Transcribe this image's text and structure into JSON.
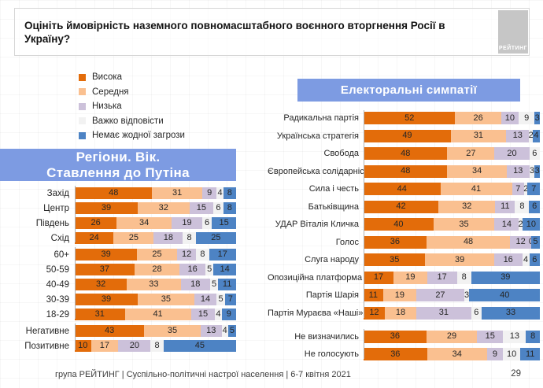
{
  "title": "Оцініть ймовірність наземного повномасштабного воєнного вторгнення Росії в Україну?",
  "logo_text": "РЕЙТИНГ",
  "accent_color": "#7d9be2",
  "panels": {
    "left": {
      "header_line1": "Регіони. Вік.",
      "header_line2": "Ставлення до Путіна"
    },
    "right": {
      "header": "Електоральні симпатії"
    }
  },
  "legend": {
    "items": [
      {
        "label": "Висока",
        "color": "#e36c0a"
      },
      {
        "label": "Середня",
        "color": "#fac090"
      },
      {
        "label": "Низька",
        "color": "#ccc1da"
      },
      {
        "label": "Важко відповісти",
        "color": "#f2f2f2"
      },
      {
        "label": "Немає жодної загрози",
        "color": "#4d83c4"
      }
    ]
  },
  "footer": {
    "source": "група РЕЙТИНГ | Суспільно-політичні настрої населення | 6-7 квітня 2021",
    "page": "29"
  },
  "chart_data": [
    {
      "type": "bar",
      "stacked": true,
      "orientation": "horizontal",
      "title": "Регіони. Вік. Ставлення до Путіна",
      "unit": "%",
      "xlim": [
        0,
        100
      ],
      "series_names": [
        "Висока",
        "Середня",
        "Низька",
        "Важко відповісти",
        "Немає жодної загрози"
      ],
      "groups": [
        {
          "name": "regions",
          "rows": [
            {
              "label": "Захід",
              "values": [
                48,
                31,
                9,
                4,
                8
              ]
            },
            {
              "label": "Центр",
              "values": [
                39,
                32,
                15,
                6,
                8
              ]
            },
            {
              "label": "Південь",
              "values": [
                26,
                34,
                19,
                6,
                15
              ]
            },
            {
              "label": "Схід",
              "values": [
                24,
                25,
                18,
                8,
                25
              ]
            }
          ]
        },
        {
          "name": "age",
          "rows": [
            {
              "label": "60+",
              "values": [
                39,
                25,
                12,
                8,
                17
              ]
            },
            {
              "label": "50-59",
              "values": [
                37,
                28,
                16,
                5,
                14
              ]
            },
            {
              "label": "40-49",
              "values": [
                32,
                33,
                18,
                5,
                11
              ]
            },
            {
              "label": "30-39",
              "values": [
                39,
                35,
                14,
                5,
                7
              ]
            },
            {
              "label": "18-29",
              "values": [
                31,
                41,
                15,
                4,
                9
              ]
            }
          ]
        },
        {
          "name": "putin-attitude",
          "rows": [
            {
              "label": "Негативне",
              "values": [
                43,
                35,
                13,
                4,
                5
              ]
            },
            {
              "label": "Позитивне",
              "values": [
                10,
                17,
                20,
                8,
                45
              ]
            }
          ]
        }
      ]
    },
    {
      "type": "bar",
      "stacked": true,
      "orientation": "horizontal",
      "title": "Електоральні симпатії",
      "unit": "%",
      "xlim": [
        0,
        100
      ],
      "series_names": [
        "Висока",
        "Середня",
        "Низька",
        "Важко відповісти",
        "Немає жодної загрози"
      ],
      "groups": [
        {
          "name": "parties",
          "rows": [
            {
              "label": "Радикальна партія",
              "values": [
                52,
                26,
                10,
                9,
                3
              ]
            },
            {
              "label": "Українська стратегія",
              "values": [
                49,
                31,
                13,
                2,
                4
              ]
            },
            {
              "label": "Свобода",
              "values": [
                48,
                27,
                20,
                6,
                null
              ]
            },
            {
              "label": "Європейська солідарність",
              "values": [
                48,
                34,
                13,
                3,
                3
              ]
            },
            {
              "label": "Сила і честь",
              "values": [
                44,
                41,
                7,
                2,
                7
              ]
            },
            {
              "label": "Батьківщина",
              "values": [
                42,
                32,
                11,
                8,
                6
              ]
            },
            {
              "label": "УДАР Віталія Кличка",
              "values": [
                40,
                35,
                14,
                2,
                10
              ]
            },
            {
              "label": "Голос",
              "values": [
                36,
                48,
                12,
                0,
                5
              ]
            },
            {
              "label": "Слуга народу",
              "values": [
                35,
                39,
                16,
                4,
                6
              ]
            },
            {
              "label": "Опозиційна платформа",
              "values": [
                17,
                19,
                17,
                8,
                39
              ]
            },
            {
              "label": "Партія Шарія",
              "values": [
                11,
                19,
                27,
                3,
                40
              ]
            },
            {
              "label": "Партія Мураєва «Наші»",
              "values": [
                12,
                18,
                31,
                6,
                33
              ]
            }
          ]
        },
        {
          "name": "undecided",
          "rows": [
            {
              "label": "Не визначились",
              "values": [
                36,
                29,
                15,
                13,
                8
              ]
            },
            {
              "label": "Не голосують",
              "values": [
                36,
                34,
                9,
                10,
                11
              ]
            }
          ]
        }
      ]
    }
  ]
}
